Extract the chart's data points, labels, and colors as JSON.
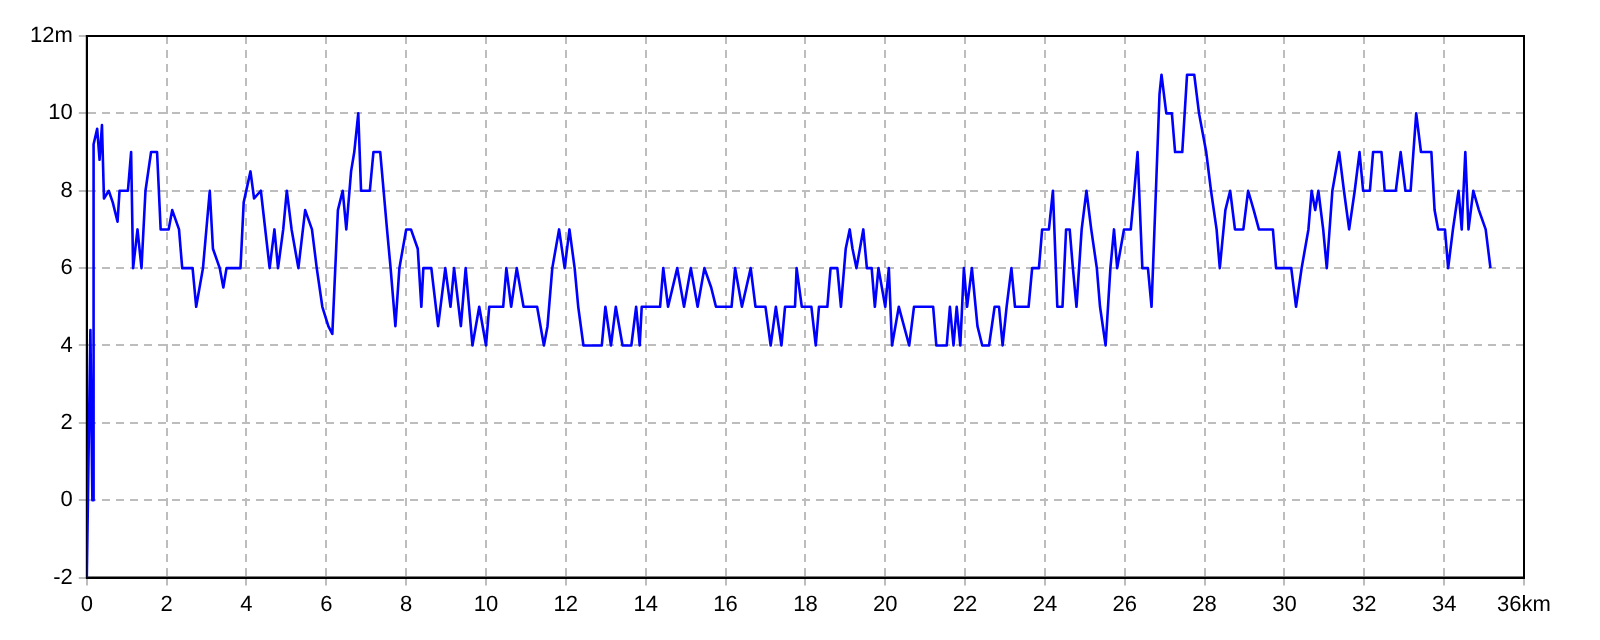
{
  "chart_data": {
    "type": "line",
    "marker": "none",
    "grid": true,
    "xlim": [
      0,
      36
    ],
    "xticks": [
      0,
      2,
      4,
      6,
      8,
      10,
      12,
      14,
      16,
      18,
      20,
      22,
      24,
      26,
      28,
      30,
      32,
      34,
      {
        "value": 36,
        "label": "36km"
      }
    ],
    "ylim": [
      -2,
      12
    ],
    "yticks": [
      -2,
      0,
      2,
      4,
      6,
      8,
      10,
      {
        "value": 12,
        "label": "12m"
      }
    ],
    "series": [
      {
        "color": "#0000ff",
        "x": [
          0,
          0.09,
          0.14,
          0.17,
          0.26,
          0.32,
          0.38,
          0.43,
          0.55,
          0.65,
          0.77,
          0.82,
          1.03,
          1.11,
          1.16,
          1.27,
          1.37,
          1.47,
          1.61,
          1.76,
          1.85,
          2.05,
          2.14,
          2.31,
          2.39,
          2.65,
          2.74,
          2.91,
          3.08,
          3.16,
          3.33,
          3.42,
          3.5,
          3.85,
          3.93,
          4.1,
          4.19,
          4.36,
          4.58,
          4.7,
          4.79,
          4.92,
          5.01,
          5.13,
          5.3,
          5.47,
          5.64,
          5.76,
          5.9,
          6.05,
          6.15,
          6.29,
          6.41,
          6.5,
          6.62,
          6.7,
          6.8,
          6.87,
          7.09,
          7.18,
          7.35,
          7.52,
          7.61,
          7.73,
          7.83,
          8.0,
          8.12,
          8.29,
          8.38,
          8.43,
          8.63,
          8.8,
          8.98,
          9.11,
          9.2,
          9.37,
          9.49,
          9.66,
          9.83,
          10.0,
          10.08,
          10.43,
          10.51,
          10.63,
          10.77,
          10.94,
          11.28,
          11.45,
          11.54,
          11.66,
          11.83,
          11.97,
          12.09,
          12.22,
          12.31,
          12.44,
          12.9,
          12.99,
          13.13,
          13.25,
          13.42,
          13.64,
          13.76,
          13.85,
          13.9,
          14.36,
          14.44,
          14.56,
          14.79,
          14.96,
          15.13,
          15.3,
          15.47,
          15.64,
          15.76,
          16.15,
          16.24,
          16.41,
          16.63,
          16.75,
          17.0,
          17.13,
          17.26,
          17.4,
          17.49,
          17.74,
          17.78,
          17.91,
          18.15,
          18.26,
          18.34,
          18.55,
          18.63,
          18.8,
          18.89,
          19.01,
          19.11,
          19.18,
          19.28,
          19.45,
          19.54,
          19.66,
          19.74,
          19.83,
          20.0,
          20.09,
          20.17,
          20.34,
          20.6,
          20.72,
          21.2,
          21.28,
          21.54,
          21.62,
          21.71,
          21.79,
          21.88,
          21.97,
          22.05,
          22.17,
          22.31,
          22.43,
          22.6,
          22.74,
          22.85,
          22.94,
          23.04,
          23.16,
          23.25,
          23.59,
          23.68,
          23.85,
          23.93,
          24.1,
          24.2,
          24.31,
          24.44,
          24.53,
          24.62,
          24.7,
          24.79,
          24.92,
          25.04,
          25.16,
          25.3,
          25.38,
          25.52,
          25.64,
          25.73,
          25.81,
          25.98,
          26.15,
          26.24,
          26.32,
          26.44,
          26.58,
          26.67,
          26.78,
          26.87,
          26.92,
          27.04,
          27.18,
          27.26,
          27.44,
          27.56,
          27.74,
          27.86,
          28.04,
          28.16,
          28.3,
          28.38,
          28.52,
          28.64,
          28.76,
          28.97,
          29.09,
          29.23,
          29.36,
          29.71,
          29.79,
          30.17,
          30.29,
          30.43,
          30.6,
          30.68,
          30.77,
          30.85,
          30.97,
          31.06,
          31.2,
          31.37,
          31.49,
          31.62,
          31.76,
          31.88,
          31.97,
          32.14,
          32.22,
          32.43,
          32.51,
          32.79,
          32.91,
          33.03,
          33.16,
          33.3,
          33.42,
          33.68,
          33.76,
          33.85,
          34.02,
          34.1,
          34.22,
          34.36,
          34.44,
          34.53,
          34.61,
          34.73,
          34.87,
          35.04,
          35.16
        ],
        "values": [
          -2,
          4.4,
          0,
          9.2,
          9.6,
          8.8,
          9.7,
          7.8,
          8,
          7.7,
          7.2,
          8,
          8,
          9,
          6,
          7,
          6,
          8,
          9,
          9,
          7,
          7,
          7.5,
          7,
          6,
          6,
          5,
          6,
          8,
          6.5,
          6,
          5.5,
          6,
          6,
          7.7,
          8.5,
          7.8,
          8,
          6,
          7,
          6,
          7,
          8,
          7,
          6,
          7.5,
          7,
          6,
          5,
          4.5,
          4.3,
          7.5,
          8,
          7,
          8.5,
          9,
          10,
          8,
          8,
          9,
          9,
          7,
          6,
          4.5,
          6,
          7,
          7,
          6.5,
          5,
          6,
          6,
          4.5,
          6,
          5,
          6,
          4.5,
          6,
          4,
          5,
          4,
          5,
          5,
          6,
          5,
          6,
          5,
          5,
          4,
          4.5,
          6,
          7,
          6,
          7,
          6,
          5,
          4,
          4,
          5,
          4,
          5,
          4,
          4,
          5,
          4,
          5,
          5,
          6,
          5,
          6,
          5,
          6,
          5,
          6,
          5.5,
          5,
          5,
          6,
          5,
          6,
          5,
          5,
          4,
          5,
          4,
          5,
          5,
          6,
          5,
          5,
          4,
          5,
          5,
          6,
          6,
          5,
          6.5,
          7,
          6.5,
          6,
          7,
          6,
          6,
          5,
          6,
          5,
          6,
          4,
          5,
          4,
          5,
          5,
          4,
          4,
          5,
          4,
          5,
          4,
          6,
          5,
          6,
          4.5,
          4,
          4,
          5,
          5,
          4,
          5,
          6,
          5,
          5,
          6,
          6,
          7,
          7,
          8,
          5,
          5,
          7,
          7,
          6,
          5,
          7,
          8,
          7,
          6,
          5,
          4,
          6,
          7,
          6,
          7,
          7,
          8,
          9,
          6,
          6,
          5,
          8,
          10.5,
          11,
          10,
          10,
          9,
          9,
          11,
          11,
          10,
          9,
          8,
          7,
          6,
          7.5,
          8,
          7,
          7,
          8,
          7.5,
          7,
          7,
          6,
          6,
          5,
          6,
          7,
          8,
          7.5,
          8,
          7,
          6,
          8,
          9,
          8,
          7,
          8,
          9,
          8,
          8,
          9,
          9,
          8,
          8,
          9,
          8,
          8,
          10,
          9,
          9,
          7.5,
          7,
          7,
          6,
          7,
          8,
          7,
          9,
          7,
          8,
          7.5,
          7,
          6
        ]
      }
    ]
  }
}
